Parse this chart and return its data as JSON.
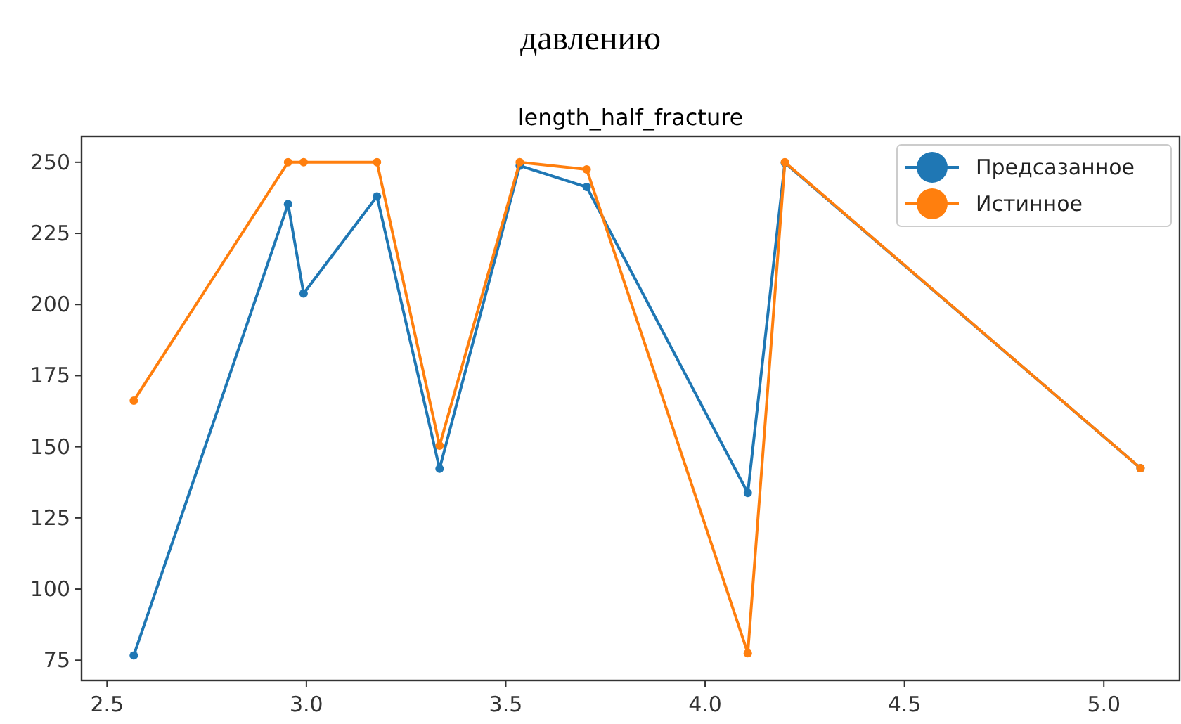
{
  "chart_data": {
    "type": "line",
    "title": "давлению",
    "subtitle": "length_half_fracture",
    "x": [
      2.567,
      2.954,
      2.993,
      3.177,
      3.334,
      3.535,
      3.703,
      4.107,
      4.2,
      5.092
    ],
    "series": [
      {
        "name": "Предсазанное",
        "color": "#1f77b4",
        "values": [
          76.7,
          235.3,
          203.9,
          238,
          142.3,
          248.8,
          241.3,
          133.8,
          249.8,
          142.5
        ]
      },
      {
        "name": "Истинное",
        "color": "#ff7f0e",
        "values": [
          166.2,
          250,
          250,
          250,
          150.4,
          250,
          247.5,
          77.5,
          250,
          142.5
        ]
      }
    ],
    "xlim": [
      2.436,
      5.19
    ],
    "xticks": [
      {
        "value": 2.5,
        "label": "2.5"
      },
      {
        "value": 3,
        "label": "3.0"
      },
      {
        "value": 3.5,
        "label": "3.5"
      },
      {
        "value": 4,
        "label": "4.0"
      },
      {
        "value": 4.5,
        "label": "4.5"
      },
      {
        "value": 5,
        "label": "5.0"
      }
    ],
    "ylim": [
      67.9,
      259.1
    ],
    "yticks": [
      75,
      100,
      125,
      150,
      175,
      200,
      225,
      250
    ],
    "grid": false,
    "legend": "top right",
    "marker": "circle",
    "line_style": "solid"
  }
}
